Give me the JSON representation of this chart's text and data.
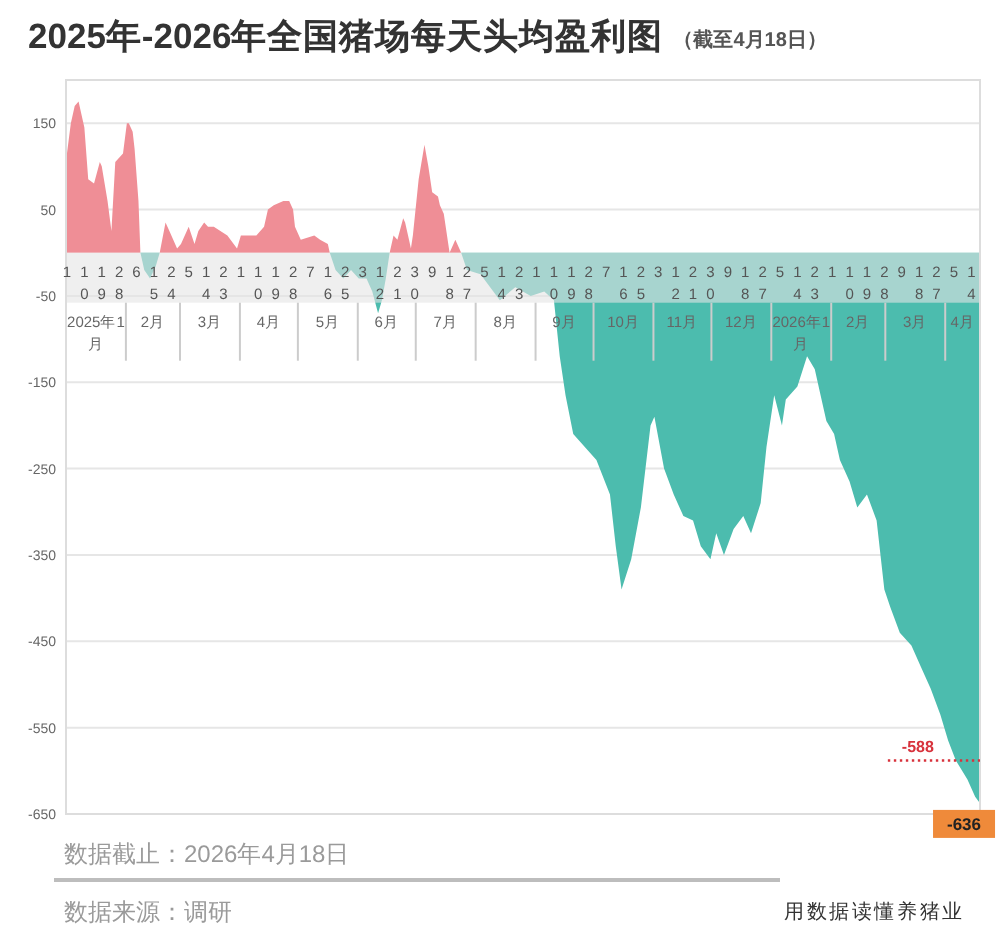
{
  "chart_data": {
    "type": "area",
    "title": "2025年-2026年全国猪场每天头均盈利图",
    "subtitle": "（截至4月18日）",
    "xlim": [
      "2024-12-31T12:00",
      "2026-04-18T12:00"
    ],
    "xticks": [
      {
        "value": "2025-01-01",
        "label": "1"
      },
      {
        "value": "2025-01-10",
        "label": "10"
      },
      {
        "value": "2025-01-19",
        "label": "19"
      },
      {
        "value": "2025-01-28",
        "label": "28"
      },
      {
        "value": "2025-02-06",
        "label": "6"
      },
      {
        "value": "2025-02-15",
        "label": "15"
      },
      {
        "value": "2025-02-24",
        "label": "24"
      },
      {
        "value": "2025-03-05",
        "label": "5"
      },
      {
        "value": "2025-03-14",
        "label": "14"
      },
      {
        "value": "2025-03-23",
        "label": "23"
      },
      {
        "value": "2025-04-01",
        "label": "1"
      },
      {
        "value": "2025-04-10",
        "label": "10"
      },
      {
        "value": "2025-04-19",
        "label": "19"
      },
      {
        "value": "2025-04-28",
        "label": "28"
      },
      {
        "value": "2025-05-07",
        "label": "7"
      },
      {
        "value": "2025-05-16",
        "label": "16"
      },
      {
        "value": "2025-05-25",
        "label": "25"
      },
      {
        "value": "2025-06-03",
        "label": "3"
      },
      {
        "value": "2025-06-12",
        "label": "12"
      },
      {
        "value": "2025-06-21",
        "label": "21"
      },
      {
        "value": "2025-06-30",
        "label": "30"
      },
      {
        "value": "2025-07-09",
        "label": "9"
      },
      {
        "value": "2025-07-18",
        "label": "18"
      },
      {
        "value": "2025-07-27",
        "label": "27"
      },
      {
        "value": "2025-08-05",
        "label": "5"
      },
      {
        "value": "2025-08-14",
        "label": "14"
      },
      {
        "value": "2025-08-23",
        "label": "23"
      },
      {
        "value": "2025-09-01",
        "label": "1"
      },
      {
        "value": "2025-09-10",
        "label": "10"
      },
      {
        "value": "2025-09-19",
        "label": "19"
      },
      {
        "value": "2025-09-28",
        "label": "28"
      },
      {
        "value": "2025-10-07",
        "label": "7"
      },
      {
        "value": "2025-10-16",
        "label": "16"
      },
      {
        "value": "2025-10-25",
        "label": "25"
      },
      {
        "value": "2025-11-03",
        "label": "3"
      },
      {
        "value": "2025-11-12",
        "label": "12"
      },
      {
        "value": "2025-11-21",
        "label": "21"
      },
      {
        "value": "2025-11-30",
        "label": "30"
      },
      {
        "value": "2025-12-09",
        "label": "9"
      },
      {
        "value": "2025-12-18",
        "label": "18"
      },
      {
        "value": "2025-12-27",
        "label": "27"
      },
      {
        "value": "2026-01-05",
        "label": "5"
      },
      {
        "value": "2026-01-14",
        "label": "14"
      },
      {
        "value": "2026-01-23",
        "label": "23"
      },
      {
        "value": "2026-02-01",
        "label": "1"
      },
      {
        "value": "2026-02-10",
        "label": "10"
      },
      {
        "value": "2026-02-19",
        "label": "19"
      },
      {
        "value": "2026-02-28",
        "label": "28"
      },
      {
        "value": "2026-03-09",
        "label": "9"
      },
      {
        "value": "2026-03-18",
        "label": "18"
      },
      {
        "value": "2026-03-27",
        "label": "27"
      },
      {
        "value": "2026-04-05",
        "label": "5"
      },
      {
        "value": "2026-04-14",
        "label": "14"
      }
    ],
    "x2lim": [
      "2024-12-31T12:00",
      "2026-04-18T12:00"
    ],
    "x2ticks": [
      {
        "value": "2025-01-16",
        "label": "2025年1月"
      },
      {
        "value": "2025-02-14T12:00",
        "label": "2月"
      },
      {
        "value": "2025-03-16",
        "label": "3月"
      },
      {
        "value": "2025-04-15T12:00",
        "label": "4月"
      },
      {
        "value": "2025-05-16",
        "label": "5月"
      },
      {
        "value": "2025-06-15T12:00",
        "label": "6月"
      },
      {
        "value": "2025-07-16",
        "label": "7月"
      },
      {
        "value": "2025-08-16",
        "label": "8月"
      },
      {
        "value": "2025-09-15T12:00",
        "label": "9月"
      },
      {
        "value": "2025-10-16",
        "label": "10月"
      },
      {
        "value": "2025-11-15T12:00",
        "label": "11月"
      },
      {
        "value": "2025-12-16",
        "label": "12月"
      },
      {
        "value": "2026-01-16",
        "label": "2026年1月"
      },
      {
        "value": "2026-02-14T12:00",
        "label": "2月"
      },
      {
        "value": "2026-03-16",
        "label": "3月"
      },
      {
        "value": "2026-04-09T12:00",
        "label": "4月"
      }
    ],
    "ylim": [
      -650,
      200
    ],
    "yticks": [
      -650,
      -550,
      -450,
      -350,
      -250,
      -150,
      -50,
      50,
      150
    ],
    "grid": "y",
    "series": [
      {
        "color": "#ef8e96",
        "x": [
          "2025-01-01",
          "2025-01-03",
          "2025-01-05",
          "2025-01-07",
          "2025-01-10",
          "2025-01-12",
          "2025-01-15",
          "2025-01-18",
          "2025-01-19",
          "2025-01-22",
          "2025-01-24",
          "2025-01-26",
          "2025-01-30",
          "2025-02-01",
          "2025-02-02",
          "2025-02-04",
          "2025-02-05",
          "2025-02-07",
          "2025-02-08"
        ],
        "values": [
          115,
          150,
          170,
          175,
          145,
          85,
          80,
          105,
          100,
          60,
          25,
          105,
          115,
          150,
          150,
          140,
          120,
          60,
          0
        ]
      },
      {
        "color": "#4cbcae",
        "x": [
          "2025-02-08",
          "2025-02-10",
          "2025-02-13",
          "2025-02-16",
          "2025-02-18"
        ],
        "values": [
          0,
          -20,
          -30,
          -15,
          0
        ]
      },
      {
        "color": "#ef8e96",
        "x": [
          "2025-02-18",
          "2025-02-21",
          "2025-02-23",
          "2025-02-27",
          "2025-03-01",
          "2025-03-05",
          "2025-03-08",
          "2025-03-10",
          "2025-03-13",
          "2025-03-15",
          "2025-03-18",
          "2025-03-25",
          "2025-03-30",
          "2025-04-01",
          "2025-04-09",
          "2025-04-13",
          "2025-04-15",
          "2025-04-18",
          "2025-04-23",
          "2025-04-26",
          "2025-04-28",
          "2025-04-29",
          "2025-05-02",
          "2025-05-09",
          "2025-05-12",
          "2025-05-16",
          "2025-05-17"
        ],
        "values": [
          0,
          35,
          25,
          5,
          10,
          30,
          10,
          25,
          35,
          30,
          30,
          20,
          5,
          20,
          20,
          30,
          50,
          55,
          60,
          60,
          50,
          30,
          15,
          20,
          15,
          10,
          0
        ]
      },
      {
        "color": "#4cbcae",
        "x": [
          "2025-05-17",
          "2025-05-20",
          "2025-05-24",
          "2025-05-28",
          "2025-06-01",
          "2025-06-05",
          "2025-06-08",
          "2025-06-11",
          "2025-06-13",
          "2025-06-15",
          "2025-06-17"
        ],
        "values": [
          0,
          -20,
          -30,
          -20,
          -30,
          -30,
          -45,
          -70,
          -55,
          -30,
          0
        ]
      },
      {
        "color": "#ef8e96",
        "x": [
          "2025-06-17",
          "2025-06-19",
          "2025-06-21",
          "2025-06-24",
          "2025-06-25",
          "2025-06-27",
          "2025-06-28",
          "2025-06-29",
          "2025-07-02",
          "2025-07-05",
          "2025-07-07",
          "2025-07-09",
          "2025-07-12",
          "2025-07-13",
          "2025-07-15",
          "2025-07-17",
          "2025-07-18",
          "2025-07-21",
          "2025-07-24"
        ],
        "values": [
          0,
          20,
          15,
          40,
          35,
          15,
          5,
          20,
          85,
          125,
          100,
          70,
          65,
          55,
          45,
          15,
          0,
          15,
          0
        ]
      },
      {
        "color": "#4cbcae",
        "x": [
          "2025-07-24",
          "2025-07-27",
          "2025-08-03",
          "2025-08-08",
          "2025-08-13",
          "2025-08-21",
          "2025-08-29",
          "2025-09-05",
          "2025-09-10",
          "2025-09-13",
          "2025-09-16",
          "2025-09-20",
          "2025-10-02",
          "2025-10-09",
          "2025-10-12",
          "2025-10-15",
          "2025-10-20",
          "2025-10-25",
          "2025-10-30",
          "2025-11-01",
          "2025-11-06",
          "2025-11-11",
          "2025-11-16",
          "2025-11-21",
          "2025-11-25",
          "2025-11-30",
          "2025-12-03",
          "2025-12-07",
          "2025-12-12",
          "2025-12-17",
          "2025-12-21",
          "2025-12-26",
          "2025-12-29",
          "2026-01-02",
          "2026-01-06",
          "2026-01-08",
          "2026-01-14",
          "2026-01-19",
          "2026-01-23",
          "2026-01-26",
          "2026-01-29",
          "2026-02-02",
          "2026-02-05",
          "2026-02-10",
          "2026-02-14",
          "2026-02-19",
          "2026-02-24",
          "2026-02-28",
          "2026-03-03",
          "2026-03-08",
          "2026-03-14",
          "2026-03-19",
          "2026-03-24",
          "2026-03-29",
          "2026-04-02",
          "2026-04-06",
          "2026-04-12",
          "2026-04-16",
          "2026-04-18"
        ],
        "values": [
          0,
          -20,
          -25,
          -40,
          -55,
          -40,
          -50,
          -45,
          -55,
          -120,
          -165,
          -210,
          -240,
          -280,
          -340,
          -390,
          -355,
          -295,
          -200,
          -190,
          -250,
          -280,
          -305,
          -310,
          -340,
          -355,
          -325,
          -350,
          -320,
          -305,
          -325,
          -290,
          -225,
          -165,
          -200,
          -170,
          -155,
          -120,
          -135,
          -165,
          -195,
          -210,
          -240,
          -265,
          -295,
          -280,
          -310,
          -390,
          -410,
          -440,
          -455,
          -480,
          -505,
          -535,
          -565,
          -588,
          -610,
          -630,
          -636
        ]
      }
    ],
    "annotations": [
      "数据截止：2026年4月18日",
      "数据来源：调研",
      "用数据读懂养猪业",
      {
        "text": "-588",
        "x": "2026-04-06",
        "y": -588
      },
      {
        "text": "-636",
        "x": "2026-04-18",
        "y": -636
      }
    ]
  }
}
